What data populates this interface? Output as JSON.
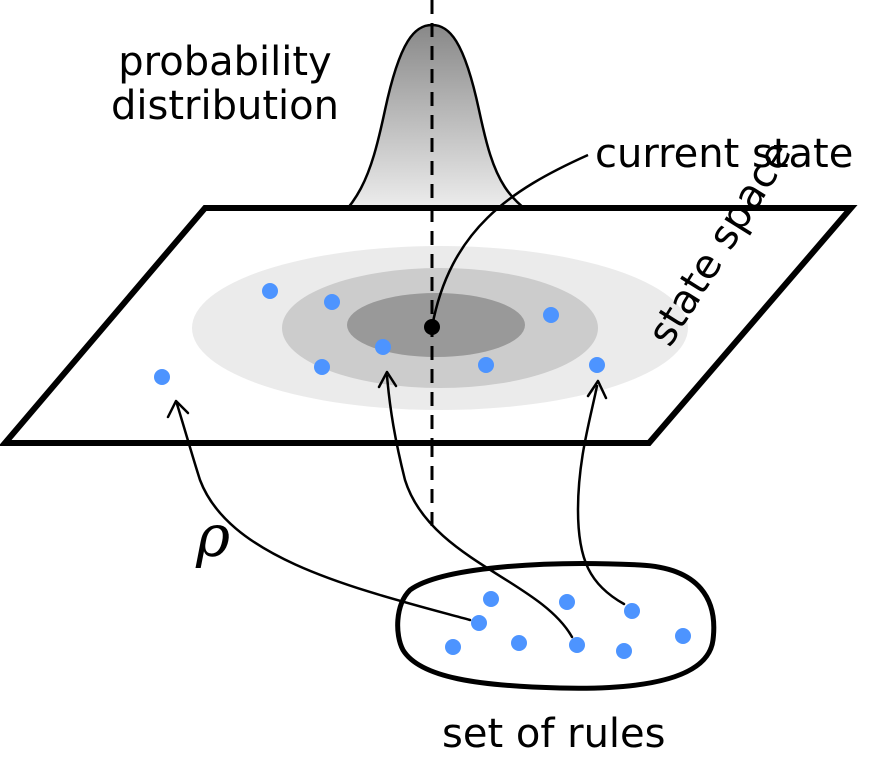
{
  "labels": {
    "probability_line1": "probability",
    "probability_line2": "distribution",
    "current_state": "current state",
    "state_space": "state space",
    "set_of_rules": "set of rules",
    "rho": "ρ"
  },
  "colors": {
    "point": "#4d94ff",
    "outline": "#000000",
    "contour_outer": "#ebebeb",
    "contour_mid": "#cccccc",
    "contour_inner": "#999999",
    "current_state_dot": "#000000"
  }
}
